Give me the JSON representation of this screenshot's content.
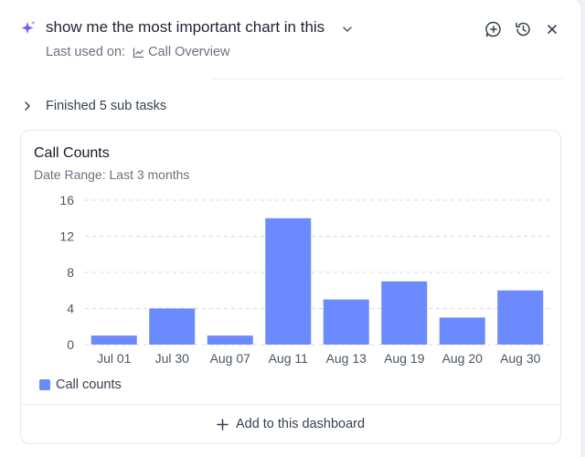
{
  "header": {
    "title": "show me the most important chart in this",
    "last_used_label": "Last used on:",
    "last_used_target": "Call Overview"
  },
  "subtasks": {
    "label": "Finished 5 sub tasks"
  },
  "card": {
    "title": "Call Counts",
    "subtitle": "Date Range: Last 3 months",
    "footer_label": "Add to this dashboard"
  },
  "chart_data": {
    "type": "bar",
    "title": "Call Counts",
    "subtitle": "Date Range: Last 3 months",
    "categories": [
      "Jul 01",
      "Jul 30",
      "Aug 07",
      "Aug 11",
      "Aug 13",
      "Aug 19",
      "Aug 20",
      "Aug 30"
    ],
    "series": [
      {
        "name": "Call counts",
        "values": [
          1,
          4,
          1,
          14,
          5,
          7,
          3,
          6
        ]
      }
    ],
    "ylim": [
      0,
      16
    ],
    "yticks": [
      0,
      4,
      8,
      12,
      16
    ],
    "xlabel": "",
    "ylabel": "",
    "grid": true,
    "legend": "bottom-left"
  },
  "colors": {
    "bar": "#6b8afd",
    "accent": "#7c5cf0"
  },
  "icons": {
    "sparkle": "sparkle-icon",
    "new_chat": "chat-plus-icon",
    "history": "history-icon",
    "close": "close-icon"
  }
}
